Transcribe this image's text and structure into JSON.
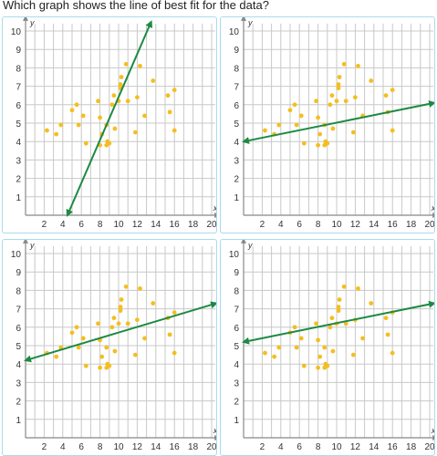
{
  "question": "Which graph shows the line of best fit for the data?",
  "axis": {
    "x_label": "x",
    "y_label": "y",
    "x_ticks": [
      "2",
      "4",
      "6",
      "8",
      "10",
      "12",
      "14",
      "16",
      "18",
      "20"
    ],
    "y_ticks": [
      "1",
      "2",
      "3",
      "4",
      "5",
      "6",
      "7",
      "8",
      "9",
      "10"
    ],
    "xlim": [
      0,
      20
    ],
    "ylim": [
      0,
      10
    ]
  },
  "colors": {
    "grid": "#c8c8c8",
    "axis": "#888888",
    "point": "#f5be1e",
    "line": "#1d8a43",
    "panel_border": "#a9dbee"
  },
  "chart_data": [
    {
      "type": "scatter",
      "points": [
        [
          2.3,
          4.6
        ],
        [
          3.3,
          4.4
        ],
        [
          3.8,
          4.9
        ],
        [
          5.0,
          5.7
        ],
        [
          5.5,
          6.0
        ],
        [
          5.7,
          4.9
        ],
        [
          6.2,
          5.4
        ],
        [
          6.5,
          3.9
        ],
        [
          7.8,
          6.2
        ],
        [
          8.0,
          3.8
        ],
        [
          8.0,
          5.3
        ],
        [
          8.2,
          4.4
        ],
        [
          8.7,
          3.8
        ],
        [
          8.8,
          4.0
        ],
        [
          8.7,
          4.9
        ],
        [
          9.0,
          3.9
        ],
        [
          9.5,
          6.5
        ],
        [
          9.3,
          6.0
        ],
        [
          9.6,
          4.7
        ],
        [
          10.0,
          6.2
        ],
        [
          10.2,
          6.9
        ],
        [
          10.3,
          7.5
        ],
        [
          10.2,
          7.1
        ],
        [
          10.8,
          8.2
        ],
        [
          11.0,
          6.2
        ],
        [
          11.8,
          4.5
        ],
        [
          12.0,
          6.4
        ],
        [
          12.3,
          8.1
        ],
        [
          12.8,
          5.4
        ],
        [
          13.7,
          7.3
        ],
        [
          15.3,
          6.5
        ],
        [
          15.5,
          5.6
        ],
        [
          16.0,
          6.8
        ],
        [
          16.0,
          4.6
        ]
      ],
      "line": [
        [
          4.5,
          0
        ],
        [
          13.5,
          10.5
        ]
      ]
    },
    {
      "type": "scatter",
      "points": [
        [
          2.3,
          4.6
        ],
        [
          3.3,
          4.4
        ],
        [
          3.8,
          4.9
        ],
        [
          5.0,
          5.7
        ],
        [
          5.5,
          6.0
        ],
        [
          5.7,
          4.9
        ],
        [
          6.2,
          5.4
        ],
        [
          6.5,
          3.9
        ],
        [
          7.8,
          6.2
        ],
        [
          8.0,
          3.8
        ],
        [
          8.0,
          5.3
        ],
        [
          8.2,
          4.4
        ],
        [
          8.7,
          3.8
        ],
        [
          8.8,
          4.0
        ],
        [
          8.7,
          4.9
        ],
        [
          9.0,
          3.9
        ],
        [
          9.5,
          6.5
        ],
        [
          9.3,
          6.0
        ],
        [
          9.6,
          4.7
        ],
        [
          10.0,
          6.2
        ],
        [
          10.2,
          6.9
        ],
        [
          10.3,
          7.5
        ],
        [
          10.2,
          7.1
        ],
        [
          10.8,
          8.2
        ],
        [
          11.0,
          6.2
        ],
        [
          11.8,
          4.5
        ],
        [
          12.0,
          6.4
        ],
        [
          12.3,
          8.1
        ],
        [
          12.8,
          5.4
        ],
        [
          13.7,
          7.3
        ],
        [
          15.3,
          6.5
        ],
        [
          15.5,
          5.6
        ],
        [
          16.0,
          6.8
        ],
        [
          16.0,
          4.6
        ]
      ],
      "line": [
        [
          0,
          4.0
        ],
        [
          20.5,
          6.1
        ]
      ]
    },
    {
      "type": "scatter",
      "points": [
        [
          2.3,
          4.6
        ],
        [
          3.3,
          4.4
        ],
        [
          3.8,
          4.9
        ],
        [
          5.0,
          5.7
        ],
        [
          5.5,
          6.0
        ],
        [
          5.7,
          4.9
        ],
        [
          6.2,
          5.4
        ],
        [
          6.5,
          3.9
        ],
        [
          7.8,
          6.2
        ],
        [
          8.0,
          3.8
        ],
        [
          8.0,
          5.3
        ],
        [
          8.2,
          4.4
        ],
        [
          8.7,
          3.8
        ],
        [
          8.8,
          4.0
        ],
        [
          8.7,
          4.9
        ],
        [
          9.0,
          3.9
        ],
        [
          9.5,
          6.5
        ],
        [
          9.3,
          6.0
        ],
        [
          9.6,
          4.7
        ],
        [
          10.0,
          6.2
        ],
        [
          10.2,
          6.9
        ],
        [
          10.3,
          7.5
        ],
        [
          10.2,
          7.1
        ],
        [
          10.8,
          8.2
        ],
        [
          11.0,
          6.2
        ],
        [
          11.8,
          4.5
        ],
        [
          12.0,
          6.4
        ],
        [
          12.3,
          8.1
        ],
        [
          12.8,
          5.4
        ],
        [
          13.7,
          7.3
        ],
        [
          15.3,
          6.5
        ],
        [
          15.5,
          5.6
        ],
        [
          16.0,
          6.8
        ],
        [
          16.0,
          4.6
        ]
      ],
      "line": [
        [
          0,
          4.2
        ],
        [
          20.5,
          7.3
        ]
      ]
    },
    {
      "type": "scatter",
      "points": [
        [
          2.3,
          4.6
        ],
        [
          3.3,
          4.4
        ],
        [
          3.8,
          4.9
        ],
        [
          5.0,
          5.7
        ],
        [
          5.5,
          6.0
        ],
        [
          5.7,
          4.9
        ],
        [
          6.2,
          5.4
        ],
        [
          6.5,
          3.9
        ],
        [
          7.8,
          6.2
        ],
        [
          8.0,
          3.8
        ],
        [
          8.0,
          5.3
        ],
        [
          8.2,
          4.4
        ],
        [
          8.7,
          3.8
        ],
        [
          8.8,
          4.0
        ],
        [
          8.7,
          4.9
        ],
        [
          9.0,
          3.9
        ],
        [
          9.5,
          6.5
        ],
        [
          9.3,
          6.0
        ],
        [
          9.6,
          4.7
        ],
        [
          10.0,
          6.2
        ],
        [
          10.2,
          6.9
        ],
        [
          10.3,
          7.5
        ],
        [
          10.2,
          7.1
        ],
        [
          10.8,
          8.2
        ],
        [
          11.0,
          6.2
        ],
        [
          11.8,
          4.5
        ],
        [
          12.0,
          6.4
        ],
        [
          12.3,
          8.1
        ],
        [
          12.8,
          5.4
        ],
        [
          13.7,
          7.3
        ],
        [
          15.3,
          6.5
        ],
        [
          15.5,
          5.6
        ],
        [
          16.0,
          6.8
        ],
        [
          16.0,
          4.6
        ]
      ],
      "line": [
        [
          0,
          5.2
        ],
        [
          20.5,
          7.3
        ]
      ]
    }
  ]
}
